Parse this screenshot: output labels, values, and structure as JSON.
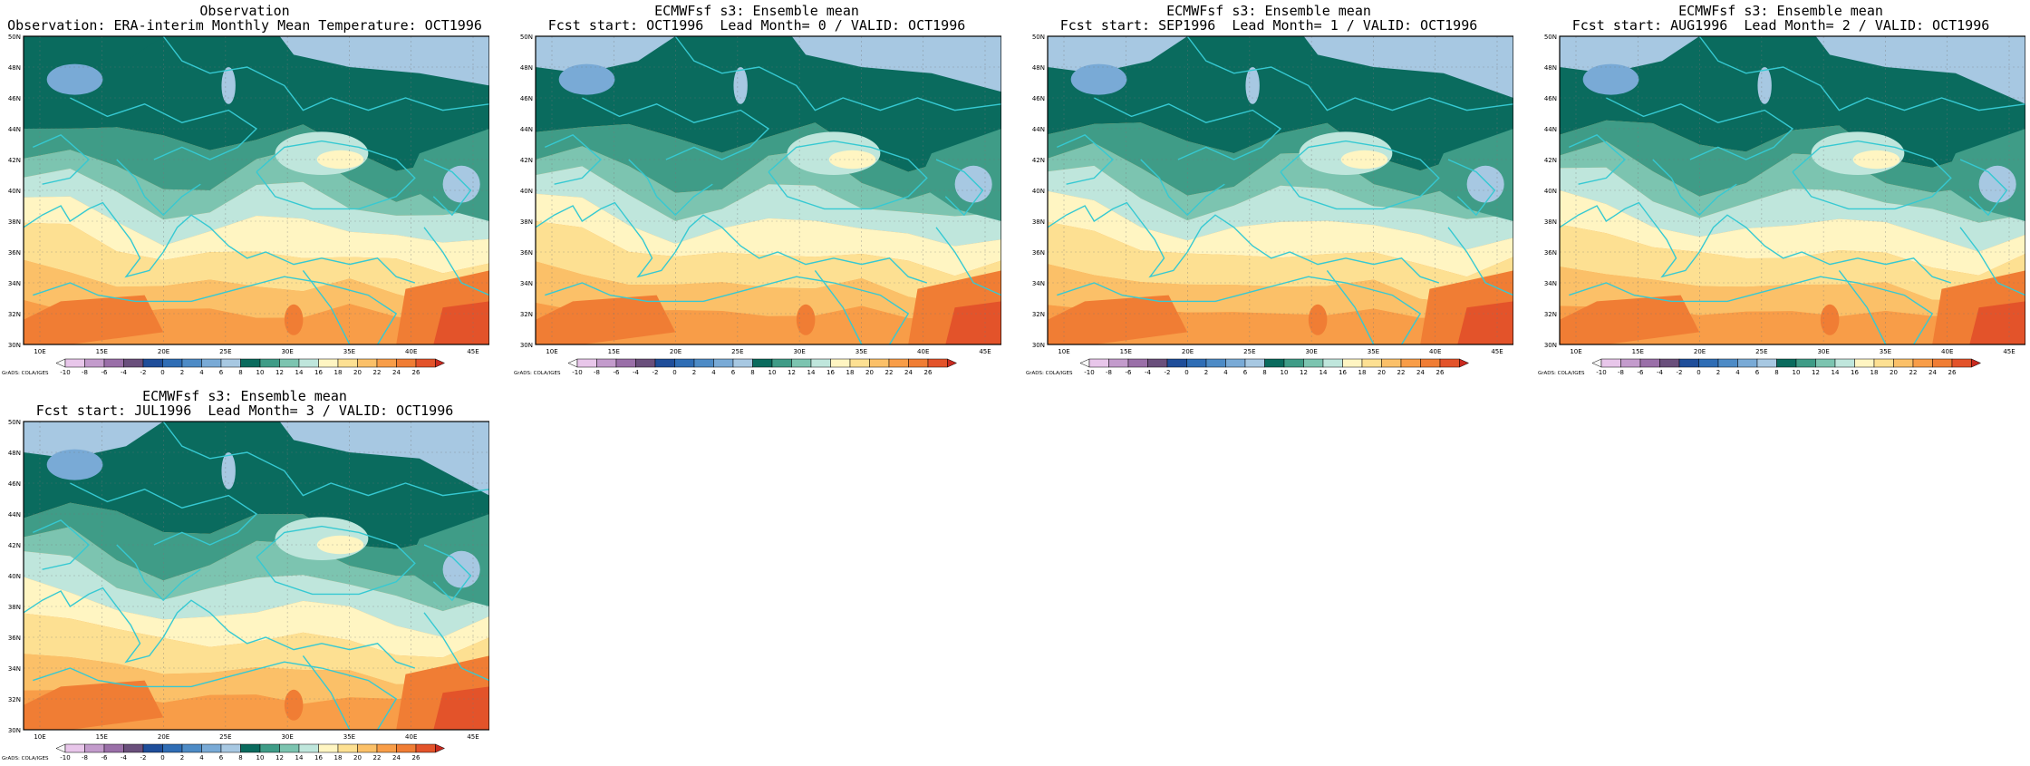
{
  "panels": [
    {
      "title1": "Observation",
      "title2": "Observation: ERA-interim Monthly Mean Temperature: OCT1996",
      "variant": 0
    },
    {
      "title1": "ECMWFsf s3: Ensemble mean",
      "title2": "Fcst start: OCT1996  Lead Month= 0 / VALID: OCT1996",
      "variant": 1
    },
    {
      "title1": "ECMWFsf s3: Ensemble mean",
      "title2": "Fcst start: SEP1996  Lead Month= 1 / VALID: OCT1996",
      "variant": 2
    },
    {
      "title1": "ECMWFsf s3: Ensemble mean",
      "title2": "Fcst start: AUG1996  Lead Month= 2 / VALID: OCT1996",
      "variant": 3
    },
    {
      "title1": "ECMWFsf s3: Ensemble mean",
      "title2": "Fcst start: JUL1996  Lead Month= 3 / VALID: OCT1996",
      "variant": 4
    }
  ],
  "lat_labels": [
    "50N",
    "48N",
    "46N",
    "44N",
    "42N",
    "40N",
    "38N",
    "36N",
    "34N",
    "32N",
    "30N"
  ],
  "lon_labels": [
    "10E",
    "15E",
    "20E",
    "25E",
    "30E",
    "35E",
    "40E",
    "45E"
  ],
  "colorbar": {
    "ticks": [
      "-10",
      "-8",
      "-6",
      "-4",
      "-2",
      "0",
      "2",
      "4",
      "6",
      "8",
      "10",
      "12",
      "14",
      "16",
      "18",
      "20",
      "22",
      "24",
      "26"
    ],
    "colors": [
      "#f7f7f7",
      "#e8c6ea",
      "#c39bcc",
      "#9a6fa8",
      "#6a4f7c",
      "#1f4e9a",
      "#2f6db5",
      "#4d8bc6",
      "#79aad6",
      "#a7c8e2",
      "#0a6b5e",
      "#3f9c87",
      "#7cc4b0",
      "#bfe6dc",
      "#fff5c2",
      "#fde092",
      "#fbc068",
      "#f89d48",
      "#f07d34",
      "#e3532a",
      "#c92a1f"
    ],
    "credit": "GrADS: COLA/IGES"
  },
  "map_colors": {
    "cold_dark": "#0a6b5e",
    "cold_mid": "#3f9c87",
    "cool": "#7cc4b0",
    "mild": "#bfe6dc",
    "pale": "#fff5c2",
    "warm_light": "#fde092",
    "warm": "#fbc068",
    "warmer": "#f89d48",
    "hot": "#f07d34",
    "hottest": "#e3532a",
    "sky": "#a7c8e2",
    "blue": "#79aad6",
    "coast": "#36c9d2"
  }
}
